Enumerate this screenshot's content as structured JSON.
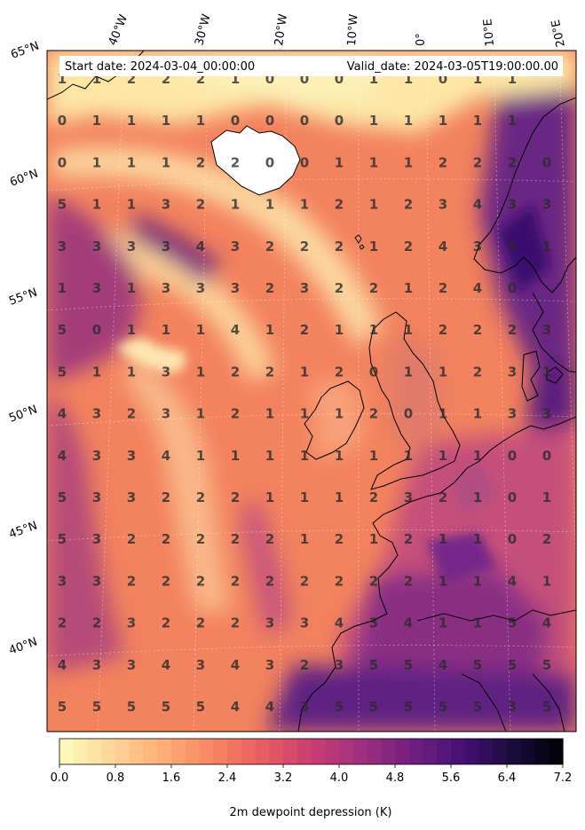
{
  "header": {
    "start_date": "Start date: 2024-03-04_00:00:00",
    "valid_date": "Valid_date: 2024-03-05T19:00:00.00"
  },
  "longitude_labels": [
    "40°W",
    "30°W",
    "20°W",
    "10°W",
    "0°",
    "10°E",
    "20°E"
  ],
  "latitude_labels": [
    "65°N",
    "60°N",
    "55°N",
    "50°N",
    "45°N",
    "40°N"
  ],
  "colorbar": {
    "label": "2m dewpoint depression (K)",
    "ticks": [
      "0.0",
      "0.8",
      "1.6",
      "2.4",
      "3.2",
      "4.0",
      "4.8",
      "5.6",
      "6.4",
      "7.2"
    ],
    "min": 0,
    "max": 7.2,
    "levels": 36,
    "colormap": "magma_r"
  },
  "grid_values": [
    [
      1,
      1,
      2,
      2,
      2,
      1,
      0,
      0,
      0,
      1,
      1,
      0,
      1,
      1
    ],
    [
      0,
      1,
      1,
      1,
      1,
      0,
      0,
      0,
      0,
      1,
      1,
      1,
      1,
      1
    ],
    [
      0,
      1,
      1,
      1,
      2,
      2,
      0,
      0,
      1,
      1,
      1,
      2,
      2,
      2,
      0
    ],
    [
      5,
      1,
      1,
      3,
      2,
      1,
      1,
      1,
      2,
      1,
      2,
      3,
      4,
      3,
      3
    ],
    [
      3,
      3,
      3,
      3,
      4,
      3,
      2,
      2,
      2,
      1,
      2,
      4,
      3,
      5,
      1
    ],
    [
      1,
      3,
      1,
      3,
      3,
      3,
      2,
      3,
      2,
      2,
      1,
      2,
      4,
      0
    ],
    [
      5,
      0,
      1,
      1,
      1,
      4,
      1,
      2,
      1,
      1,
      1,
      2,
      2,
      2,
      3
    ],
    [
      5,
      1,
      1,
      3,
      1,
      2,
      2,
      1,
      2,
      0,
      1,
      1,
      2,
      3,
      1
    ],
    [
      4,
      3,
      2,
      3,
      1,
      2,
      1,
      1,
      1,
      2,
      0,
      1,
      1,
      3,
      3
    ],
    [
      4,
      3,
      3,
      4,
      1,
      1,
      1,
      1,
      1,
      1,
      1,
      1,
      1,
      0,
      0
    ],
    [
      5,
      3,
      3,
      2,
      2,
      2,
      1,
      1,
      1,
      2,
      3,
      2,
      1,
      0,
      1
    ],
    [
      5,
      3,
      2,
      2,
      2,
      2,
      2,
      1,
      2,
      1,
      2,
      1,
      1,
      0,
      2
    ],
    [
      3,
      3,
      2,
      2,
      2,
      2,
      2,
      2,
      2,
      2,
      2,
      1,
      1,
      4,
      1
    ],
    [
      2,
      2,
      3,
      2,
      2,
      2,
      3,
      3,
      4,
      3,
      4,
      1,
      1,
      5,
      4
    ],
    [
      4,
      3,
      3,
      4,
      3,
      4,
      3,
      2,
      3,
      5,
      5,
      4,
      5,
      5,
      5
    ],
    [
      5,
      5,
      5,
      5,
      5,
      4,
      4,
      3,
      5,
      5,
      5,
      5,
      5,
      3,
      5
    ]
  ]
}
